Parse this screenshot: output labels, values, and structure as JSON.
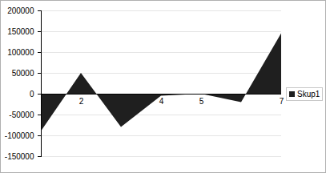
{
  "chart_data": {
    "type": "area",
    "categories": [
      null,
      "2",
      null,
      "4",
      "5",
      null,
      "7"
    ],
    "series": [
      {
        "name": "Skup1",
        "color": "#1f1f1f",
        "values": [
          -90000,
          50000,
          -80000,
          -5000,
          0,
          -20000,
          145000
        ]
      }
    ],
    "ylim": [
      -150000,
      200000
    ],
    "yticks": [
      -150000,
      -100000,
      -50000,
      0,
      50000,
      100000,
      150000,
      200000
    ],
    "grid": true,
    "legend": "right"
  }
}
